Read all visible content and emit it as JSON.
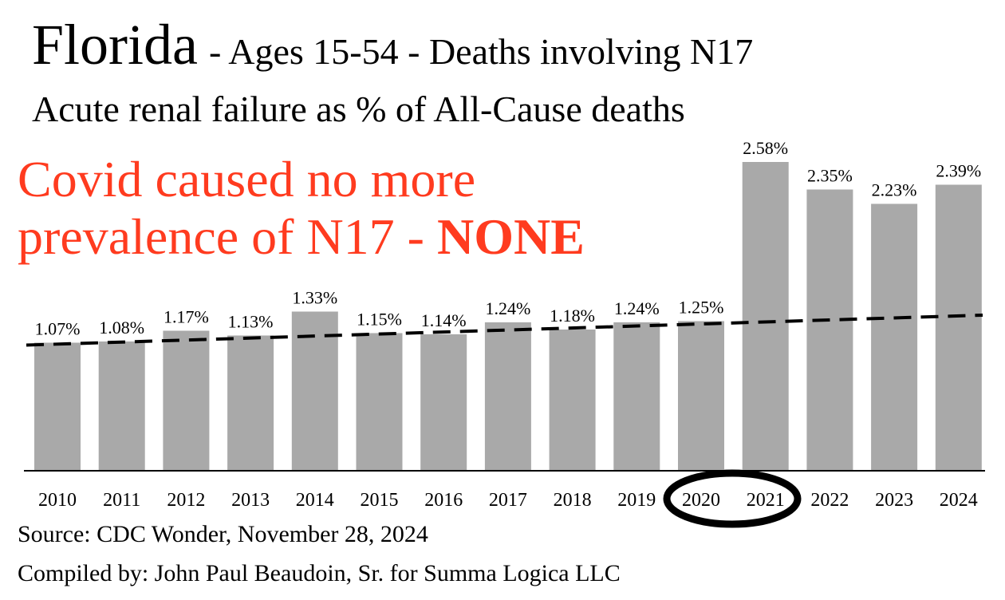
{
  "chart_data": {
    "type": "bar",
    "title": "Florida",
    "title_suffix": "- Ages 15-54 - Deaths involving N17",
    "subtitle": "Acute renal failure as % of All-Cause deaths",
    "annotation": [
      "Covid caused no more",
      "prevalence of N17 -"
    ],
    "annotation_emphasis": "NONE",
    "marker_annotation": "?",
    "categories": [
      "2010",
      "2011",
      "2012",
      "2013",
      "2014",
      "2015",
      "2016",
      "2017",
      "2018",
      "2019",
      "2020",
      "2021",
      "2022",
      "2023",
      "2024"
    ],
    "values": [
      1.07,
      1.08,
      1.17,
      1.13,
      1.33,
      1.15,
      1.14,
      1.24,
      1.18,
      1.24,
      1.25,
      2.58,
      2.35,
      2.23,
      2.39
    ],
    "value_labels": [
      "1.07%",
      "1.08%",
      "1.17%",
      "1.13%",
      "1.33%",
      "1.15%",
      "1.14%",
      "1.24%",
      "1.18%",
      "1.24%",
      "1.25%",
      "2.58%",
      "2.35%",
      "2.23%",
      "2.39%"
    ],
    "color": "#a9a9a9",
    "trendline": [
      1.05,
      1.3
    ],
    "source": "Source:  CDC Wonder, November 28, 2024",
    "credit": "Compiled by:  John Paul Beaudoin, Sr. for Summa Logica LLC"
  }
}
